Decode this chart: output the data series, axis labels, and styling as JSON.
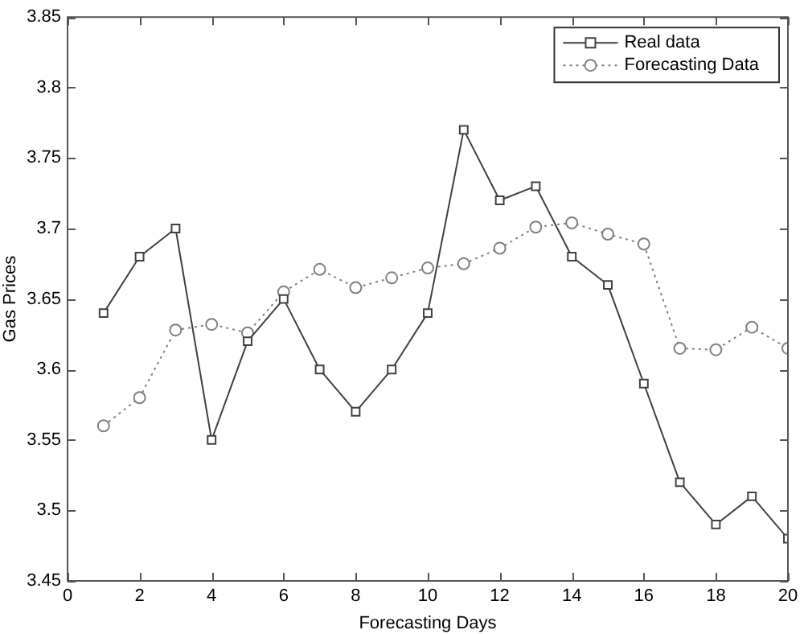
{
  "chart_data": {
    "type": "line",
    "xlabel": "Forecasting Days",
    "ylabel": "Gas Prices",
    "x": [
      1,
      2,
      3,
      4,
      5,
      6,
      7,
      8,
      9,
      10,
      11,
      12,
      13,
      14,
      15,
      16,
      17,
      18,
      19,
      20
    ],
    "series": [
      {
        "name": "Real data",
        "color": "#404040",
        "marker": "square",
        "line_style": "solid",
        "values": [
          3.64,
          3.68,
          3.7,
          3.55,
          3.62,
          3.65,
          3.6,
          3.57,
          3.6,
          3.64,
          3.77,
          3.72,
          3.73,
          3.68,
          3.66,
          3.59,
          3.52,
          3.49,
          3.51,
          3.48
        ]
      },
      {
        "name": "Forecasting Data",
        "color": "#808080",
        "marker": "circle",
        "line_style": "dotted",
        "values": [
          3.56,
          3.58,
          3.628,
          3.632,
          3.626,
          3.655,
          3.671,
          3.658,
          3.665,
          3.672,
          3.675,
          3.686,
          3.701,
          3.704,
          3.696,
          3.689,
          3.615,
          3.614,
          3.63,
          3.615
        ]
      }
    ],
    "xlim": [
      0,
      20
    ],
    "xticks": [
      0,
      2,
      4,
      6,
      8,
      10,
      12,
      14,
      16,
      18,
      20
    ],
    "ylim": [
      3.45,
      3.85
    ],
    "yticks": [
      3.45,
      3.5,
      3.55,
      3.6,
      3.65,
      3.7,
      3.75,
      3.8,
      3.85
    ],
    "grid": false,
    "legend": "top right"
  }
}
